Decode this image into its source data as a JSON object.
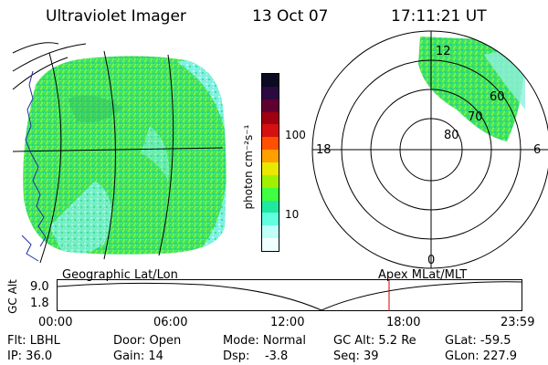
{
  "header": {
    "instrument": "Ultraviolet Imager",
    "date": "13 Oct 07",
    "time": "17:11:21 UT"
  },
  "panels": {
    "geo_label": "Geographic Lat/Lon",
    "apex_label": "Apex MLat/MLT"
  },
  "colorbar": {
    "unit_label": "photon cm⁻²s⁻¹",
    "ticks": [
      "100",
      "10"
    ],
    "colors": [
      "#0a0a20",
      "#2a0a40",
      "#600030",
      "#a00010",
      "#d41010",
      "#ff5000",
      "#ffa000",
      "#e8e800",
      "#a0f000",
      "#40ff40",
      "#20e8a0",
      "#60ffe0",
      "#c0fff8",
      "#f0ffff"
    ]
  },
  "polar": {
    "lat_labels": [
      "80",
      "70",
      "60"
    ],
    "mlt_labels": [
      "12",
      "18",
      "6",
      "0"
    ]
  },
  "timeline": {
    "axis_label": "GC Alt",
    "y_ticks": [
      "9.0",
      "1.8"
    ],
    "x_ticks": [
      "00:00",
      "06:00",
      "12:00",
      "18:00",
      "23:59"
    ],
    "current_time_marker": "17:11:21",
    "marker_color": "#cc0000"
  },
  "status": {
    "filter": "Flt: LBHL",
    "door": "Door: Open",
    "mode": "Mode: Normal",
    "gc_alt": "GC Alt: 5.2 Re",
    "glat": "GLat: -59.5",
    "ip": "IP: 36.0",
    "gain": "Gain: 14",
    "dsp": "Dsp:    -3.8",
    "seq": "Seq: 39",
    "glon": "GLon: 227.9"
  }
}
